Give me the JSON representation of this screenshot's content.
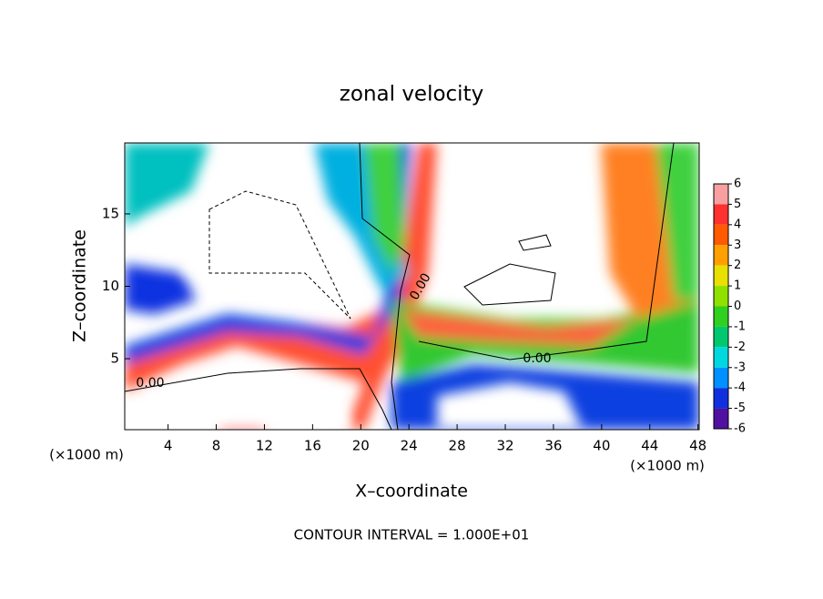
{
  "chart_data": {
    "type": "contour",
    "title": "zonal velocity",
    "xlabel": "X–coordinate",
    "ylabel": "Z–coordinate",
    "x_unit_label": "(×1000 m)",
    "y_unit_label": "(×1000 m)",
    "footer": "CONTOUR INTERVAL = 1.000E+01",
    "contour_labels": [
      "0.00",
      "0.00",
      "0.00"
    ],
    "xlim": [
      0.4,
      48.1
    ],
    "xticks": [
      4,
      8,
      12,
      16,
      20,
      24,
      28,
      32,
      36,
      40,
      44,
      48
    ],
    "ylim": [
      0.1,
      19.9
    ],
    "yticks": [
      5,
      10,
      15
    ],
    "colorbar": {
      "ticks": [
        6,
        5,
        4,
        3,
        2,
        1,
        0,
        -1,
        -2,
        -3,
        -4,
        -5,
        -6
      ],
      "colors": [
        "#f8a0a0",
        "#ff3030",
        "#ff5a00",
        "#ffa000",
        "#e8e000",
        "#90e000",
        "#30d020",
        "#00c870",
        "#00d8e0",
        "#0090ff",
        "#1030e0",
        "#5010a0"
      ]
    }
  }
}
